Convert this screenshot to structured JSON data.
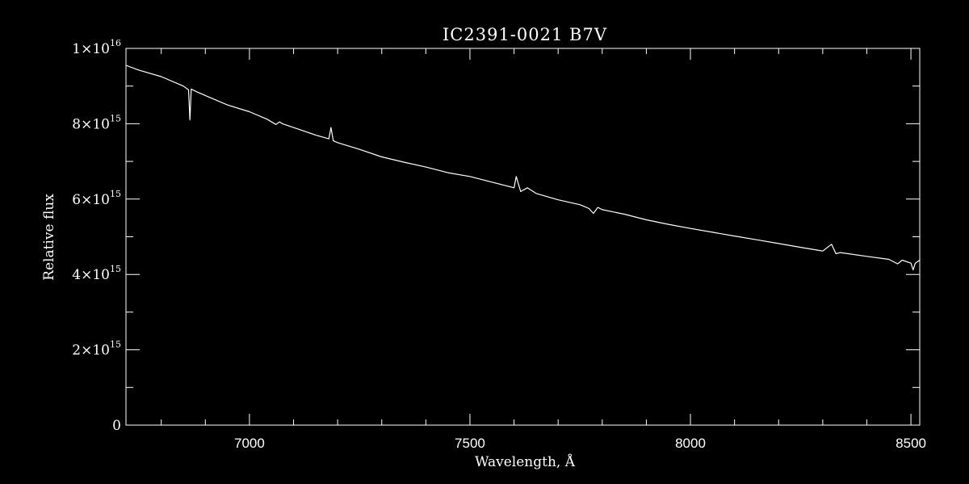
{
  "chart_data": {
    "type": "line",
    "title": "IC2391-0021   B7V",
    "xlabel": "Wavelength, Å",
    "ylabel": "Relative flux",
    "xlim": [
      6720,
      8520
    ],
    "ylim": [
      0,
      1e+16
    ],
    "x_ticks": [
      {
        "value": 7000,
        "label": "7000"
      },
      {
        "value": 7500,
        "label": "7500"
      },
      {
        "value": 8000,
        "label": "8000"
      },
      {
        "value": 8500,
        "label": "8500"
      }
    ],
    "y_ticks": [
      {
        "value": 0,
        "mantissa": "0",
        "exponent": ""
      },
      {
        "value": 2000000000000000.0,
        "mantissa": "2×10",
        "exponent": "15"
      },
      {
        "value": 4000000000000000.0,
        "mantissa": "4×10",
        "exponent": "15"
      },
      {
        "value": 6000000000000000.0,
        "mantissa": "6×10",
        "exponent": "15"
      },
      {
        "value": 8000000000000000.0,
        "mantissa": "8×10",
        "exponent": "15"
      },
      {
        "value": 1e+16,
        "mantissa": "1×10",
        "exponent": "16"
      }
    ],
    "x_minor_step": 100,
    "y_minor_step": 1000000000000000.0,
    "grid": false,
    "line_color": "#ffffff",
    "background": "#000000",
    "series": [
      {
        "x": [
          6720,
          6750,
          6800,
          6850,
          6862,
          6865,
          6868,
          6880,
          6900,
          6950,
          7000,
          7040,
          7060,
          7068,
          7075,
          7100,
          7150,
          7180,
          7185,
          7190,
          7200,
          7250,
          7300,
          7350,
          7400,
          7450,
          7500,
          7550,
          7600,
          7605,
          7615,
          7630,
          7650,
          7700,
          7750,
          7770,
          7780,
          7790,
          7800,
          7850,
          7900,
          7950,
          8000,
          8050,
          8100,
          8150,
          8200,
          8250,
          8300,
          8320,
          8330,
          8340,
          8400,
          8450,
          8470,
          8480,
          8500,
          8505,
          8510,
          8520
        ],
        "y": [
          9550000000000000.0,
          9420000000000000.0,
          9250000000000000.0,
          9000000000000000.0,
          8900000000000000.0,
          8100000000000000.0,
          8920000000000000.0,
          8850000000000000.0,
          8750000000000000.0,
          8500000000000000.0,
          8320000000000000.0,
          8120000000000000.0,
          7980000000000000.0,
          8050000000000000.0,
          8000000000000000.0,
          7900000000000000.0,
          7700000000000000.0,
          7600000000000000.0,
          7900000000000000.0,
          7550000000000000.0,
          7500000000000000.0,
          7320000000000000.0,
          7120000000000000.0,
          6980000000000000.0,
          6850000000000000.0,
          6700000000000000.0,
          6600000000000000.0,
          6450000000000000.0,
          6300000000000000.0,
          6600000000000000.0,
          6200000000000000.0,
          6300000000000000.0,
          6150000000000000.0,
          5980000000000000.0,
          5850000000000000.0,
          5750000000000000.0,
          5620000000000000.0,
          5780000000000000.0,
          5720000000000000.0,
          5600000000000000.0,
          5450000000000000.0,
          5330000000000000.0,
          5220000000000000.0,
          5120000000000000.0,
          5020000000000000.0,
          4920000000000000.0,
          4820000000000000.0,
          4720000000000000.0,
          4620000000000000.0,
          4800000000000000.0,
          4550000000000000.0,
          4580000000000000.0,
          4480000000000000.0,
          4400000000000000.0,
          4280000000000000.0,
          4380000000000000.0,
          4300000000000000.0,
          4120000000000000.0,
          4300000000000000.0,
          4380000000000000.0
        ]
      }
    ]
  }
}
